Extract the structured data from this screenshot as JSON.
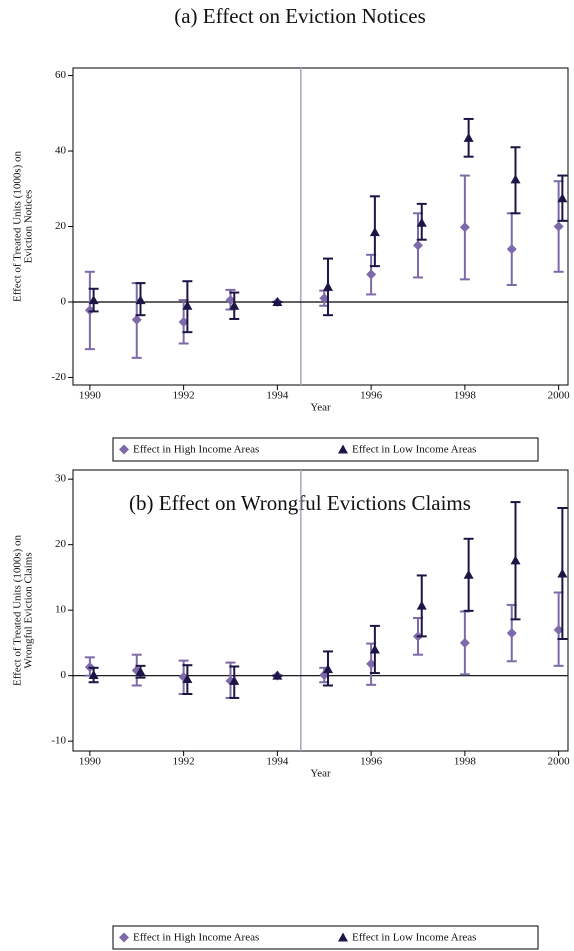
{
  "chart_data": [
    {
      "type": "errorbar",
      "title": "(a) Effect on Eviction Notices",
      "ylabel": [
        "Effect of Treated Units (1000s) on",
        "Eviction Notices"
      ],
      "xlabel": "Year",
      "xlim": [
        1989.64,
        2000.2
      ],
      "xticks": [
        1990,
        1992,
        1994,
        1996,
        1998,
        2000
      ],
      "ylim": [
        -22,
        62
      ],
      "yticks": [
        -20,
        0,
        20,
        40,
        60
      ],
      "vline": 1994.5,
      "hline": 0,
      "series": [
        {
          "name": "Effect in High Income Areas",
          "color": "#7e6aa8",
          "marker": "diamond",
          "x": [
            1990,
            1991,
            1992,
            1993,
            1994,
            1995,
            1996,
            1997,
            1998,
            1999,
            2000
          ],
          "values": [
            -2.2,
            -4.7,
            -5.3,
            0.5,
            0,
            1,
            7.3,
            15,
            19.8,
            14,
            20
          ],
          "lower": [
            -12.5,
            -14.8,
            -11,
            -2,
            0,
            -1,
            2,
            6.5,
            6,
            4.5,
            8
          ],
          "upper": [
            8,
            5,
            0.5,
            3.2,
            0,
            3,
            12.5,
            23.5,
            33.5,
            23.5,
            32
          ]
        },
        {
          "name": "Effect in Low Income Areas",
          "color": "#1c1545",
          "marker": "triangle",
          "x": [
            1990.08,
            1991.08,
            1992.08,
            1993.08,
            1994,
            1995.08,
            1996.08,
            1997.08,
            1998.08,
            1999.08,
            2000.08
          ],
          "values": [
            0.5,
            0.5,
            -1,
            -1,
            0,
            4,
            18.5,
            21,
            43.5,
            32.5,
            27.5
          ],
          "lower": [
            -2.5,
            -3.5,
            -8,
            -4.5,
            0,
            -3.5,
            9.5,
            16.5,
            38.5,
            23.5,
            21.5
          ],
          "upper": [
            3.5,
            5,
            5.5,
            2.5,
            0,
            11.5,
            28,
            26,
            48.5,
            41,
            33.5
          ]
        }
      ]
    },
    {
      "type": "errorbar",
      "title": "(b) Effect on Wrongful Evictions Claims",
      "ylabel": [
        "Effect of Treated Units (1000s) on",
        "Wrongful Eviction Claims"
      ],
      "xlabel": "Year",
      "xlim": [
        1989.64,
        2000.2
      ],
      "xticks": [
        1990,
        1992,
        1994,
        1996,
        1998,
        2000
      ],
      "ylim": [
        -11.5,
        31.4
      ],
      "yticks": [
        -10,
        0,
        10,
        20,
        30
      ],
      "vline": 1994.5,
      "hline": 0,
      "series": [
        {
          "name": "Effect in High Income Areas",
          "color": "#7e6aa8",
          "marker": "diamond",
          "x": [
            1990,
            1991,
            1992,
            1993,
            1994,
            1995,
            1996,
            1997,
            1998,
            1999,
            2000
          ],
          "values": [
            1.3,
            0.8,
            -0.2,
            -0.8,
            0,
            0.1,
            1.8,
            6,
            5,
            6.5,
            7
          ],
          "lower": [
            0,
            -1.5,
            -2.8,
            -3.4,
            0,
            -1,
            -1.4,
            3.2,
            0.2,
            2.2,
            1.5
          ],
          "upper": [
            2.8,
            3.2,
            2.3,
            2,
            0,
            1.2,
            4.9,
            8.8,
            9.8,
            10.8,
            12.7
          ]
        },
        {
          "name": "Effect in Low Income Areas",
          "color": "#1c1545",
          "marker": "triangle",
          "x": [
            1990.08,
            1991.08,
            1992.08,
            1993.08,
            1994,
            1995.08,
            1996.08,
            1997.08,
            1998.08,
            1999.08,
            2000.08
          ],
          "values": [
            0.1,
            0.6,
            -0.5,
            -0.8,
            0,
            1,
            4,
            10.7,
            15.4,
            17.6,
            15.6
          ],
          "lower": [
            -1,
            -0.3,
            -2.8,
            -3.4,
            0,
            -1.5,
            0.4,
            6,
            9.9,
            8.6,
            5.6
          ],
          "upper": [
            1.2,
            1.5,
            1.6,
            1.4,
            0,
            3.7,
            7.6,
            15.3,
            20.9,
            26.5,
            25.6
          ]
        }
      ]
    }
  ]
}
